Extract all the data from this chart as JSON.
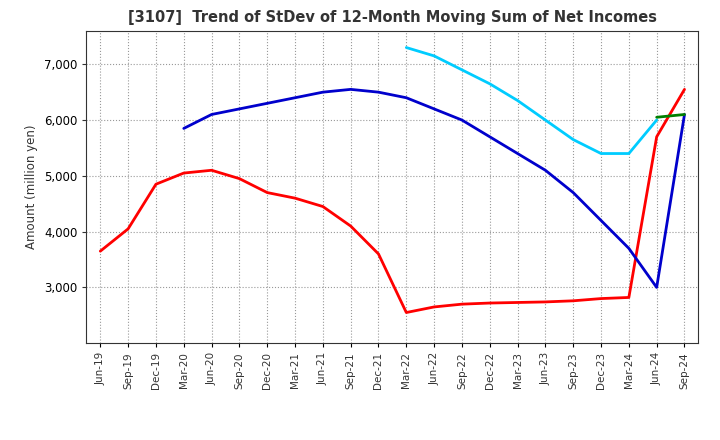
{
  "title": "[3107]  Trend of StDev of 12-Month Moving Sum of Net Incomes",
  "ylabel": "Amount (million yen)",
  "x_labels": [
    "Jun-19",
    "Sep-19",
    "Dec-19",
    "Mar-20",
    "Jun-20",
    "Sep-20",
    "Dec-20",
    "Mar-21",
    "Jun-21",
    "Sep-21",
    "Dec-21",
    "Mar-22",
    "Jun-22",
    "Sep-22",
    "Dec-22",
    "Mar-23",
    "Jun-23",
    "Sep-23",
    "Dec-23",
    "Mar-24",
    "Jun-24",
    "Sep-24"
  ],
  "series": {
    "3 Years": {
      "color": "#ff0000",
      "data": [
        3650,
        4050,
        4850,
        5050,
        5100,
        4950,
        4700,
        4600,
        4450,
        4100,
        3600,
        2550,
        2650,
        2700,
        2720,
        2730,
        2740,
        2760,
        2800,
        2820,
        5700,
        6550
      ]
    },
    "5 Years": {
      "color": "#0000cc",
      "data": [
        null,
        null,
        null,
        5850,
        6100,
        6200,
        6300,
        6400,
        6500,
        6550,
        6500,
        6400,
        6200,
        6000,
        5700,
        5400,
        5100,
        4700,
        4200,
        3700,
        3000,
        6100
      ]
    },
    "7 Years": {
      "color": "#00ccff",
      "data": [
        null,
        null,
        null,
        null,
        null,
        null,
        null,
        null,
        null,
        null,
        null,
        7300,
        7150,
        6900,
        6650,
        6350,
        6000,
        5650,
        5400,
        5400,
        6000,
        null
      ]
    },
    "10 Years": {
      "color": "#008000",
      "data": [
        null,
        null,
        null,
        null,
        null,
        null,
        null,
        null,
        null,
        null,
        null,
        null,
        null,
        null,
        null,
        null,
        null,
        null,
        null,
        null,
        6050,
        6100
      ]
    }
  },
  "ylim": [
    2000,
    7600
  ],
  "yticks": [
    3000,
    4000,
    5000,
    6000,
    7000
  ],
  "background_color": "#ffffff",
  "grid_color": "#aaaaaa"
}
